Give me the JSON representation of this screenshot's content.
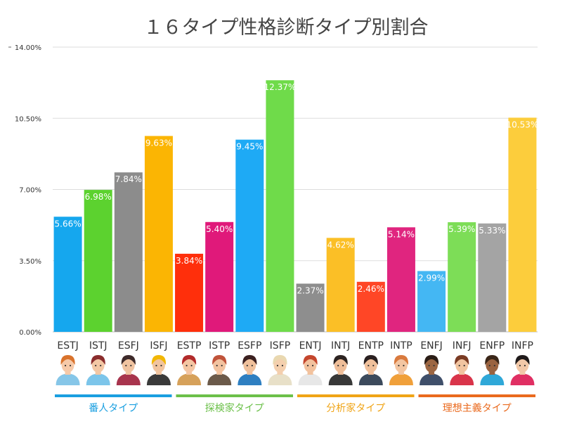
{
  "chart_data": {
    "type": "bar",
    "title": "１６タイプ性格診断タイプ別割合",
    "ylim": [
      0,
      14
    ],
    "yticks": [
      0,
      3.5,
      7,
      10.5,
      14
    ],
    "ytick_labels": [
      "0.00%",
      "3.50%",
      "7.00%",
      "10.50%",
      "14.00%"
    ],
    "grid": true,
    "categories": [
      "ESTJ",
      "ISTJ",
      "ESFJ",
      "ISFJ",
      "ESTP",
      "ISTP",
      "ESFP",
      "ISFP",
      "ENTJ",
      "INTJ",
      "ENTP",
      "INTP",
      "ENFJ",
      "INFJ",
      "ENFP",
      "INFP"
    ],
    "values": [
      5.66,
      6.98,
      7.84,
      9.63,
      3.84,
      5.4,
      9.45,
      12.37,
      2.37,
      4.62,
      2.46,
      5.14,
      2.99,
      5.39,
      5.33,
      10.53
    ],
    "value_labels": [
      "5.66%",
      "6.98%",
      "7.84%",
      "9.63%",
      "3.84%",
      "5.40%",
      "9.45%",
      "12.37%",
      "2.37%",
      "4.62%",
      "2.46%",
      "5.14%",
      "2.99%",
      "5.39%",
      "5.33%",
      "10.53%"
    ],
    "colors": [
      "#15a7ee",
      "#5cd22f",
      "#8c8c8c",
      "#fbb503",
      "#ff2f0b",
      "#e0197a",
      "#1eaaf5",
      "#6fdb4a",
      "#8e8e8e",
      "#fbbf26",
      "#ff4626",
      "#e0257f",
      "#44b7f3",
      "#7ddd57",
      "#a4a4a4",
      "#fccd3c"
    ],
    "groups": [
      {
        "label": "番人タイプ",
        "color": "#1a9fe0"
      },
      {
        "label": "探検家タイプ",
        "color": "#6cc04a"
      },
      {
        "label": "分析家タイプ",
        "color": "#f0a416"
      },
      {
        "label": "理想主義タイプ",
        "color": "#ea6a1e"
      }
    ]
  },
  "avatars": [
    {
      "name": "woman-avatar-icon",
      "hair": "#d9732c",
      "skin": "#f6c9a8",
      "shirt": "#86c6e8"
    },
    {
      "name": "woman-avatar-icon",
      "hair": "#8a2d2d",
      "skin": "#f3c7a4",
      "shirt": "#7cc5ea"
    },
    {
      "name": "woman-avatar-icon",
      "hair": "#3d2a2a",
      "skin": "#f0c3a0",
      "shirt": "#a8344d"
    },
    {
      "name": "worker-avatar-icon",
      "hair": "#f2b705",
      "skin": "#f1c49f",
      "shirt": "#3a3a3a"
    },
    {
      "name": "woman-avatar-icon",
      "hair": "#b22b2b",
      "skin": "#f4c6a3",
      "shirt": "#d6a15a"
    },
    {
      "name": "man-avatar-icon",
      "hair": "#c0533a",
      "skin": "#f2c3a0",
      "shirt": "#6b5a4a"
    },
    {
      "name": "woman-avatar-icon",
      "hair": "#3b2020",
      "skin": "#f0c19c",
      "shirt": "#2e7fc1"
    },
    {
      "name": "man-hat-avatar-icon",
      "hair": "#e9d8b0",
      "skin": "#f4cfae",
      "shirt": "#e8e0c8"
    },
    {
      "name": "man-avatar-icon",
      "hair": "#c4462d",
      "skin": "#f2c29e",
      "shirt": "#e7e7e7"
    },
    {
      "name": "man-avatar-icon",
      "hair": "#2c2321",
      "skin": "#efbe99",
      "shirt": "#383838"
    },
    {
      "name": "man-avatar-icon",
      "hair": "#2a2020",
      "skin": "#f0c09b",
      "shirt": "#3c4a5c"
    },
    {
      "name": "man-avatar-icon",
      "hair": "#d97a3e",
      "skin": "#f3c6a2",
      "shirt": "#f0a03a"
    },
    {
      "name": "man-avatar-icon",
      "hair": "#2b1d16",
      "skin": "#9c6642",
      "shirt": "#3f4f6a"
    },
    {
      "name": "man-avatar-icon",
      "hair": "#7a3b24",
      "skin": "#f1c4a0",
      "shirt": "#d9344a"
    },
    {
      "name": "woman-avatar-icon",
      "hair": "#3a2618",
      "skin": "#9a6340",
      "shirt": "#2fa8d8"
    },
    {
      "name": "woman-avatar-icon",
      "hair": "#1f1a1a",
      "skin": "#f2c8a8",
      "shirt": "#e02f63"
    }
  ]
}
